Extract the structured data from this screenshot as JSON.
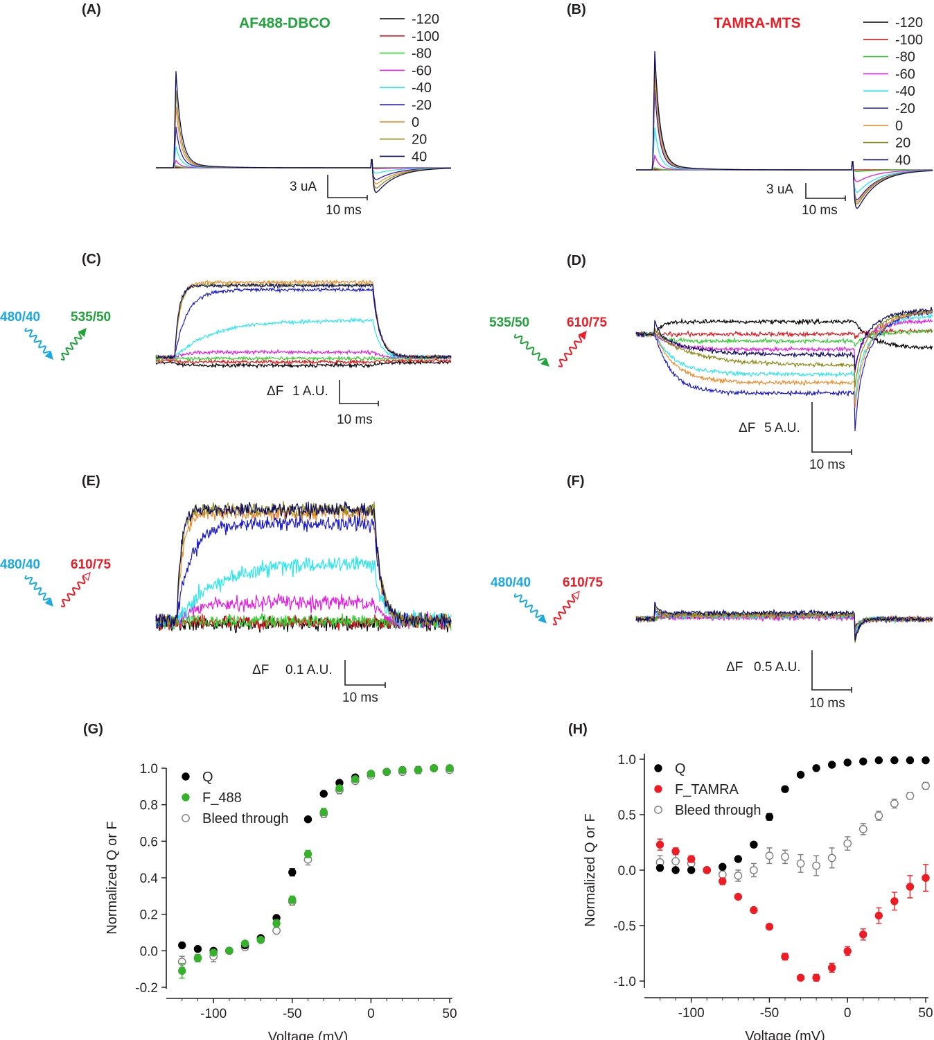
{
  "colors": {
    "v-120": "#000000",
    "v-100": "#e8161b",
    "v-80": "#2ed12e",
    "v-60": "#e51ce5",
    "v-40": "#27e8ee",
    "v-20": "#1a1acc",
    "v0": "#f08b2b",
    "v20": "#8a8a14",
    "v40": "#0c0c66",
    "q": "#000000",
    "f488": "#35b12a",
    "tamra": "#ee1c25",
    "bleed": "#7d7d7d",
    "green_text": "#21a33b",
    "red_text": "#ee1c25",
    "blue_text": "#19a9e1"
  },
  "voltage_legend": [
    "-120",
    "-100",
    "-80",
    "-60",
    "-40",
    "-20",
    "0",
    "20",
    "40"
  ],
  "panels": {
    "A": {
      "label": "(A)",
      "dye": "AF488-DBCO",
      "scale_y": "3 uA",
      "scale_x": "10 ms"
    },
    "B": {
      "label": "(B)",
      "dye": "TAMRA-MTS",
      "scale_y": "3 uA",
      "scale_x": "10 ms"
    },
    "C": {
      "label": "(C)",
      "ex": "480/40",
      "em": "535/50",
      "scale_df": "ΔF",
      "scale_y": "1 A.U.",
      "scale_x": "10 ms"
    },
    "D": {
      "label": "(D)",
      "ex": "535/50",
      "em": "610/75",
      "scale_df": "ΔF",
      "scale_y": "5 A.U.",
      "scale_x": "10 ms"
    },
    "E": {
      "label": "(E)",
      "ex": "480/40",
      "em": "610/75",
      "scale_df": "ΔF",
      "scale_y": "0.1 A.U.",
      "scale_x": "10 ms"
    },
    "F": {
      "label": "(F)",
      "ex": "480/40",
      "em": "610/75",
      "scale_df": "ΔF",
      "scale_y": "0.5 A.U.",
      "scale_x": "10 ms"
    },
    "G": {
      "label": "(G)"
    },
    "H": {
      "label": "(H)"
    }
  },
  "chart_data": [
    {
      "panel": "G",
      "type": "scatter",
      "xlabel": "Voltage (mV)",
      "ylabel": "Normalized Q or F",
      "xlim": [
        -130,
        50
      ],
      "ylim": [
        -0.2,
        1.0
      ],
      "xticks": [
        "-100",
        "-50",
        "0",
        "50"
      ],
      "yticks": [
        "-0.2",
        "0.0",
        "0.2",
        "0.4",
        "0.6",
        "0.8",
        "1.0"
      ],
      "legend_position": "top-left",
      "x": [
        -120,
        -110,
        -100,
        -90,
        -80,
        -70,
        -60,
        -50,
        -40,
        -30,
        -20,
        -10,
        0,
        10,
        20,
        30,
        40,
        50
      ],
      "series": [
        {
          "name": "Q",
          "values": [
            0.03,
            0.01,
            0.0,
            0.0,
            0.03,
            0.07,
            0.18,
            0.43,
            0.72,
            0.86,
            0.92,
            0.95,
            0.97,
            0.98,
            0.99,
            0.99,
            1.0,
            1.0
          ],
          "err": [
            0.01,
            0.01,
            0.01,
            0.01,
            0.01,
            0.01,
            0.01,
            0.02,
            0.01,
            0.01,
            0.01,
            0.01,
            0.01,
            0.01,
            0.01,
            0.01,
            0.01,
            0.01
          ]
        },
        {
          "name": "F_488",
          "values": [
            -0.11,
            -0.04,
            -0.01,
            0.0,
            0.04,
            0.06,
            0.15,
            0.28,
            0.53,
            0.76,
            0.89,
            0.94,
            0.97,
            0.98,
            0.99,
            0.99,
            1.0,
            1.0
          ],
          "err": [
            0.04,
            0.02,
            0.01,
            0.01,
            0.01,
            0.01,
            0.02,
            0.02,
            0.02,
            0.02,
            0.01,
            0.01,
            0.01,
            0.01,
            0.01,
            0.01,
            0.01,
            0.01
          ]
        },
        {
          "name": "Bleed through",
          "values": [
            -0.06,
            -0.04,
            -0.03,
            0.0,
            0.02,
            0.06,
            0.11,
            0.27,
            0.5,
            0.75,
            0.88,
            0.93,
            0.96,
            0.98,
            0.98,
            0.99,
            1.0,
            0.99
          ],
          "err": [
            0.03,
            0.02,
            0.03,
            0.01,
            0.01,
            0.01,
            0.01,
            0.02,
            0.03,
            0.02,
            0.02,
            0.01,
            0.01,
            0.01,
            0.01,
            0.02,
            0.01,
            0.01
          ]
        }
      ]
    },
    {
      "panel": "H",
      "type": "scatter",
      "xlabel": "Voltage (mV)",
      "ylabel": "Normalized Q or F",
      "xlim": [
        -130,
        50
      ],
      "ylim": [
        -1.05,
        1.05
      ],
      "xticks": [
        "-100",
        "-50",
        "0",
        "50"
      ],
      "yticks": [
        "-1.0",
        "-0.5",
        "0.0",
        "0.5",
        "1.0"
      ],
      "legend_position": "top-left",
      "x": [
        -120,
        -110,
        -100,
        -90,
        -80,
        -70,
        -60,
        -50,
        -40,
        -30,
        -20,
        -10,
        0,
        10,
        20,
        30,
        40,
        50
      ],
      "series": [
        {
          "name": "Q",
          "values": [
            0.02,
            0.0,
            0.0,
            0.0,
            0.03,
            0.1,
            0.23,
            0.48,
            0.73,
            0.86,
            0.92,
            0.95,
            0.97,
            0.98,
            0.99,
            0.99,
            0.99,
            0.99
          ],
          "err": [
            0.01,
            0.01,
            0.01,
            0.01,
            0.01,
            0.01,
            0.01,
            0.03,
            0.02,
            0.01,
            0.01,
            0.01,
            0.01,
            0.01,
            0.01,
            0.01,
            0.01,
            0.01
          ]
        },
        {
          "name": "F_TAMRA",
          "values": [
            0.23,
            0.17,
            0.1,
            0.0,
            -0.1,
            -0.24,
            -0.36,
            -0.51,
            -0.78,
            -0.97,
            -0.97,
            -0.88,
            -0.73,
            -0.58,
            -0.41,
            -0.28,
            -0.15,
            -0.07
          ],
          "err": [
            0.05,
            0.03,
            0.03,
            0.01,
            0.03,
            0.02,
            0.02,
            0.02,
            0.03,
            0.02,
            0.03,
            0.04,
            0.04,
            0.05,
            0.07,
            0.08,
            0.1,
            0.12
          ]
        },
        {
          "name": "Bleed through",
          "values": [
            0.07,
            0.08,
            0.06,
            0.0,
            -0.04,
            -0.05,
            0.0,
            0.13,
            0.12,
            0.06,
            0.04,
            0.11,
            0.24,
            0.37,
            0.49,
            0.6,
            0.67,
            0.76
          ],
          "err": [
            0.06,
            0.06,
            0.05,
            0.02,
            0.04,
            0.05,
            0.06,
            0.07,
            0.06,
            0.08,
            0.09,
            0.09,
            0.06,
            0.05,
            0.04,
            0.04,
            0.03,
            0.03
          ]
        }
      ]
    }
  ]
}
